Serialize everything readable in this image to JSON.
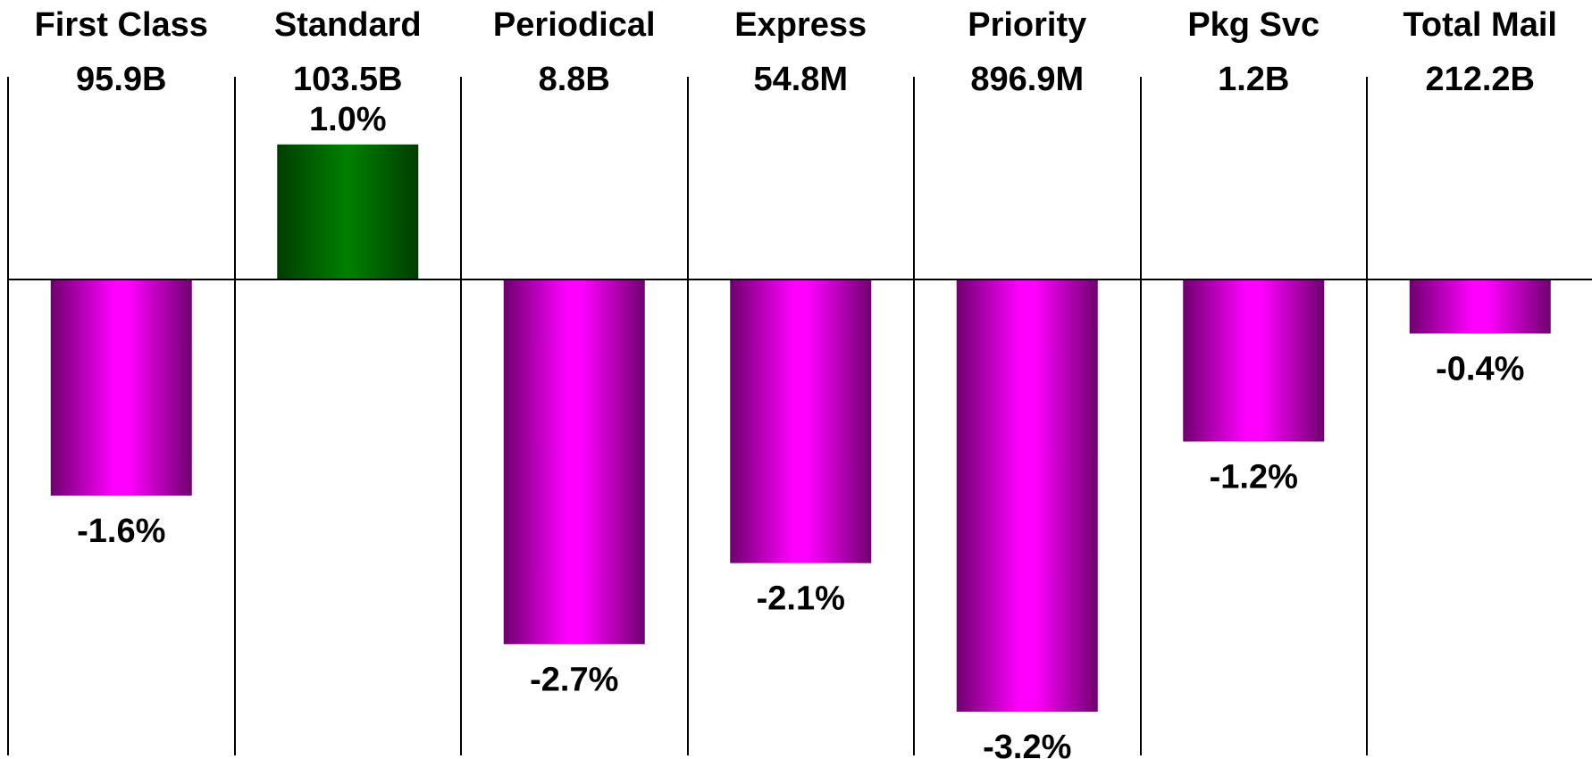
{
  "chart_data": {
    "type": "bar",
    "categories": [
      "First Class",
      "Standard",
      "Periodical",
      "Express",
      "Priority",
      "Pkg Svc",
      "Total Mail"
    ],
    "volumes": [
      "95.9B",
      "103.5B",
      "8.8B",
      "54.8M",
      "896.9M",
      "1.2B",
      "212.2B"
    ],
    "values": [
      -1.6,
      1.0,
      -2.7,
      -2.1,
      -3.2,
      -1.2,
      -0.4
    ],
    "value_labels": [
      "-1.6%",
      "1.0%",
      "-2.7%",
      "-2.1%",
      "-3.2%",
      "-1.2%",
      "-0.4%"
    ],
    "ylim": [
      -3.2,
      1.0
    ],
    "grid": false,
    "colors": {
      "positive": "#008000",
      "positive_dark": "#003d00",
      "negative": "#ff00ff",
      "negative_dark": "#6e006e",
      "axis": "#000000"
    }
  }
}
